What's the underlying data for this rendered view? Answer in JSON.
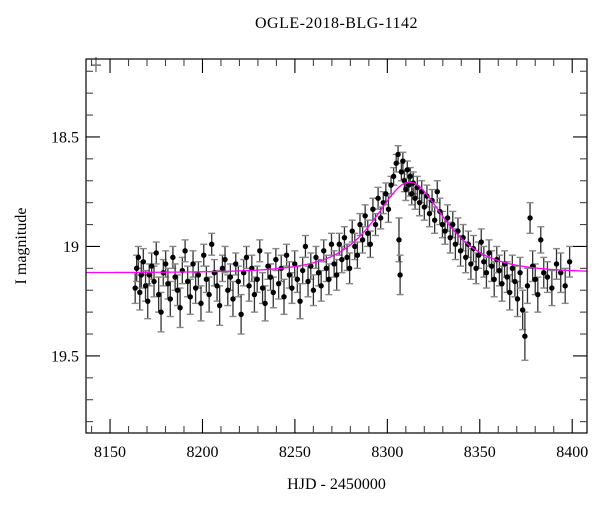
{
  "figure": {
    "title": "OGLE-2018-BLG-1142",
    "xlabel": "HJD - 2450000",
    "ylabel": "I magnitude"
  },
  "chart_data": {
    "type": "scatter",
    "title": "OGLE-2018-BLG-1142",
    "xlabel": "HJD - 2450000",
    "ylabel": "I magnitude",
    "x_axis": "HJD minus 2450000, days",
    "y_axis": "I-band magnitude, inverted axis (brighter up)",
    "xlim": [
      8137,
      8408
    ],
    "ylim": [
      18.144,
      19.852
    ],
    "y_inverted": true,
    "grid": false,
    "legend": "none",
    "x_major_ticks": [
      8150,
      8200,
      8250,
      8300,
      8350,
      8400
    ],
    "x_major_tick_labels": [
      "8150",
      "8200",
      "8250",
      "8300",
      "8350",
      "8400"
    ],
    "x_minor_step": 10,
    "y_major_ticks": [
      18.5,
      19.0,
      19.5
    ],
    "y_major_tick_labels": [
      "18.5",
      "19",
      "19.5"
    ],
    "y_minor_step": 0.1,
    "model_curve": {
      "kind": "paczynski-microlensing",
      "t0": 8312,
      "tE": 25,
      "u0": 0.86,
      "baseline_mag": 19.12,
      "peak_mag": 18.71,
      "color": "#ff00ff"
    },
    "clipped_point": {
      "t": 8142.4,
      "cap_mag": 18.172,
      "color": "#777777"
    },
    "colors": {
      "point": "#000000",
      "error_bar": "#333333",
      "error_cap": "#888888",
      "axis": "#000000",
      "minor_tick": "#444444"
    },
    "points_format": [
      "hjd_minus_2450000",
      "I_mag",
      "error"
    ],
    "points": [
      [
        8163.6,
        19.19,
        0.07
      ],
      [
        8164.4,
        19.1,
        0.06
      ],
      [
        8165.3,
        19.05,
        0.05
      ],
      [
        8166.1,
        19.21,
        0.08
      ],
      [
        8166.9,
        19.13,
        0.06
      ],
      [
        8168.0,
        19.07,
        0.06
      ],
      [
        8169.2,
        19.18,
        0.07
      ],
      [
        8170.4,
        19.25,
        0.08
      ],
      [
        8171.2,
        19.13,
        0.05
      ],
      [
        8172.5,
        19.09,
        0.06
      ],
      [
        8173.8,
        19.16,
        0.07
      ],
      [
        8175.0,
        19.03,
        0.05
      ],
      [
        8176.3,
        19.22,
        0.08
      ],
      [
        8177.6,
        19.3,
        0.09
      ],
      [
        8178.8,
        19.12,
        0.06
      ],
      [
        8180.1,
        19.08,
        0.06
      ],
      [
        8181.3,
        19.17,
        0.07
      ],
      [
        8182.6,
        19.24,
        0.08
      ],
      [
        8184.0,
        19.05,
        0.05
      ],
      [
        8185.2,
        19.14,
        0.06
      ],
      [
        8186.5,
        19.2,
        0.07
      ],
      [
        8187.9,
        19.28,
        0.09
      ],
      [
        8189.1,
        19.11,
        0.06
      ],
      [
        8190.6,
        19.02,
        0.05
      ],
      [
        8192.0,
        19.16,
        0.07
      ],
      [
        8193.4,
        19.23,
        0.08
      ],
      [
        8194.9,
        19.08,
        0.06
      ],
      [
        8196.3,
        19.19,
        0.07
      ],
      [
        8197.8,
        19.13,
        0.06
      ],
      [
        8199.2,
        19.26,
        0.08
      ],
      [
        8200.7,
        19.04,
        0.05
      ],
      [
        8202.1,
        19.15,
        0.06
      ],
      [
        8203.6,
        19.22,
        0.08
      ],
      [
        8205.0,
        18.99,
        0.05
      ],
      [
        8206.4,
        19.12,
        0.06
      ],
      [
        8207.9,
        19.18,
        0.07
      ],
      [
        8209.3,
        19.27,
        0.09
      ],
      [
        8210.8,
        19.1,
        0.06
      ],
      [
        8212.2,
        19.06,
        0.06
      ],
      [
        8213.7,
        19.2,
        0.07
      ],
      [
        8215.1,
        19.14,
        0.06
      ],
      [
        8216.5,
        19.24,
        0.08
      ],
      [
        8218.0,
        19.08,
        0.05
      ],
      [
        8219.4,
        19.16,
        0.07
      ],
      [
        8220.9,
        19.31,
        0.09
      ],
      [
        8222.3,
        19.12,
        0.06
      ],
      [
        8223.8,
        19.05,
        0.05
      ],
      [
        8225.2,
        19.18,
        0.07
      ],
      [
        8226.7,
        19.1,
        0.06
      ],
      [
        8228.1,
        19.22,
        0.08
      ],
      [
        8229.6,
        19.15,
        0.06
      ],
      [
        8231.0,
        19.02,
        0.05
      ],
      [
        8232.5,
        19.19,
        0.07
      ],
      [
        8233.9,
        19.26,
        0.08
      ],
      [
        8235.4,
        19.09,
        0.06
      ],
      [
        8236.8,
        19.14,
        0.06
      ],
      [
        8238.3,
        19.21,
        0.07
      ],
      [
        8239.7,
        19.06,
        0.05
      ],
      [
        8241.2,
        19.17,
        0.07
      ],
      [
        8242.6,
        19.1,
        0.06
      ],
      [
        8244.1,
        19.23,
        0.08
      ],
      [
        8245.5,
        19.04,
        0.05
      ],
      [
        8247.0,
        19.13,
        0.06
      ],
      [
        8248.4,
        19.19,
        0.07
      ],
      [
        8249.9,
        19.08,
        0.06
      ],
      [
        8251.3,
        19.15,
        0.06
      ],
      [
        8252.8,
        19.25,
        0.08
      ],
      [
        8254.2,
        19.11,
        0.06
      ],
      [
        8255.7,
        19.0,
        0.05
      ],
      [
        8257.1,
        19.16,
        0.07
      ],
      [
        8258.6,
        19.09,
        0.06
      ],
      [
        8260.0,
        19.2,
        0.07
      ],
      [
        8261.4,
        19.05,
        0.05
      ],
      [
        8262.8,
        19.12,
        0.06
      ],
      [
        8264.2,
        19.18,
        0.07
      ],
      [
        8265.6,
        19.02,
        0.05
      ],
      [
        8267.0,
        19.1,
        0.06
      ],
      [
        8268.4,
        19.15,
        0.07
      ],
      [
        8269.8,
        18.99,
        0.05
      ],
      [
        8271.2,
        19.08,
        0.06
      ],
      [
        8272.6,
        19.13,
        0.07
      ],
      [
        8274.0,
        18.99,
        0.05
      ],
      [
        8275.4,
        19.06,
        0.06
      ],
      [
        8276.8,
        18.96,
        0.05
      ],
      [
        8278.2,
        19.05,
        0.06
      ],
      [
        8279.6,
        19.1,
        0.07
      ],
      [
        8281.0,
        18.93,
        0.05
      ],
      [
        8282.4,
        19.0,
        0.06
      ],
      [
        8283.8,
        19.04,
        0.06
      ],
      [
        8285.2,
        18.9,
        0.05
      ],
      [
        8286.6,
        18.97,
        0.06
      ],
      [
        8288.0,
        18.86,
        0.05
      ],
      [
        8289.4,
        18.94,
        0.06
      ],
      [
        8290.8,
        18.99,
        0.06
      ],
      [
        8292.2,
        18.83,
        0.05
      ],
      [
        8293.6,
        18.9,
        0.05
      ],
      [
        8295.0,
        18.78,
        0.05
      ],
      [
        8296.4,
        18.87,
        0.05
      ],
      [
        8297.8,
        18.8,
        0.05
      ],
      [
        8299.2,
        18.76,
        0.05
      ],
      [
        8300.6,
        18.83,
        0.06
      ],
      [
        8302.0,
        18.72,
        0.04
      ],
      [
        8303.4,
        18.68,
        0.04
      ],
      [
        8304.8,
        18.62,
        0.04
      ],
      [
        8305.8,
        18.58,
        0.04
      ],
      [
        8306.3,
        18.97,
        0.1
      ],
      [
        8306.9,
        19.13,
        0.09
      ],
      [
        8307.6,
        18.66,
        0.04
      ],
      [
        8308.4,
        18.61,
        0.04
      ],
      [
        8309.2,
        18.7,
        0.05
      ],
      [
        8310.0,
        18.74,
        0.05
      ],
      [
        8310.8,
        18.65,
        0.04
      ],
      [
        8311.6,
        18.72,
        0.05
      ],
      [
        8312.4,
        18.68,
        0.04
      ],
      [
        8313.2,
        18.76,
        0.05
      ],
      [
        8314.0,
        18.71,
        0.05
      ],
      [
        8315.0,
        18.78,
        0.05
      ],
      [
        8316.2,
        18.73,
        0.05
      ],
      [
        8317.4,
        18.8,
        0.06
      ],
      [
        8318.6,
        18.75,
        0.05
      ],
      [
        8320.0,
        18.82,
        0.06
      ],
      [
        8321.4,
        18.77,
        0.05
      ],
      [
        8322.8,
        18.85,
        0.06
      ],
      [
        8324.2,
        18.79,
        0.05
      ],
      [
        8325.6,
        18.88,
        0.06
      ],
      [
        8327.0,
        18.75,
        0.05
      ],
      [
        8328.4,
        18.84,
        0.06
      ],
      [
        8329.8,
        18.9,
        0.06
      ],
      [
        8331.2,
        18.93,
        0.06
      ],
      [
        8332.6,
        18.87,
        0.06
      ],
      [
        8334.0,
        18.96,
        0.07
      ],
      [
        8335.4,
        18.9,
        0.06
      ],
      [
        8336.8,
        18.99,
        0.07
      ],
      [
        8338.2,
        18.93,
        0.06
      ],
      [
        8339.6,
        19.02,
        0.07
      ],
      [
        8341.0,
        18.96,
        0.06
      ],
      [
        8342.4,
        19.05,
        0.07
      ],
      [
        8343.8,
        18.99,
        0.06
      ],
      [
        8345.2,
        19.08,
        0.07
      ],
      [
        8346.6,
        19.01,
        0.06
      ],
      [
        8348.0,
        19.1,
        0.07
      ],
      [
        8349.4,
        19.04,
        0.06
      ],
      [
        8350.8,
        18.98,
        0.06
      ],
      [
        8352.2,
        19.07,
        0.07
      ],
      [
        8353.6,
        19.12,
        0.07
      ],
      [
        8355.0,
        19.03,
        0.06
      ],
      [
        8356.4,
        19.09,
        0.07
      ],
      [
        8357.8,
        19.15,
        0.08
      ],
      [
        8359.2,
        19.06,
        0.06
      ],
      [
        8360.6,
        19.11,
        0.07
      ],
      [
        8362.0,
        19.17,
        0.08
      ],
      [
        8363.4,
        19.08,
        0.06
      ],
      [
        8364.8,
        19.14,
        0.07
      ],
      [
        8366.2,
        19.21,
        0.08
      ],
      [
        8367.6,
        19.1,
        0.06
      ],
      [
        8369.0,
        19.16,
        0.07
      ],
      [
        8370.4,
        19.24,
        0.08
      ],
      [
        8371.8,
        19.12,
        0.07
      ],
      [
        8373.2,
        19.29,
        0.09
      ],
      [
        8374.4,
        19.41,
        0.11
      ],
      [
        8375.8,
        19.18,
        0.08
      ],
      [
        8377.2,
        18.87,
        0.07
      ],
      [
        8378.6,
        19.09,
        0.07
      ],
      [
        8380.0,
        19.15,
        0.07
      ],
      [
        8381.4,
        19.22,
        0.08
      ],
      [
        8383.0,
        18.97,
        0.06
      ],
      [
        8384.6,
        19.12,
        0.07
      ],
      [
        8386.6,
        19.14,
        0.07
      ],
      [
        8389.0,
        19.19,
        0.08
      ],
      [
        8391.5,
        19.08,
        0.07
      ],
      [
        8393.8,
        19.12,
        0.09
      ],
      [
        8396.2,
        19.18,
        0.08
      ],
      [
        8398.6,
        19.07,
        0.07
      ]
    ]
  }
}
